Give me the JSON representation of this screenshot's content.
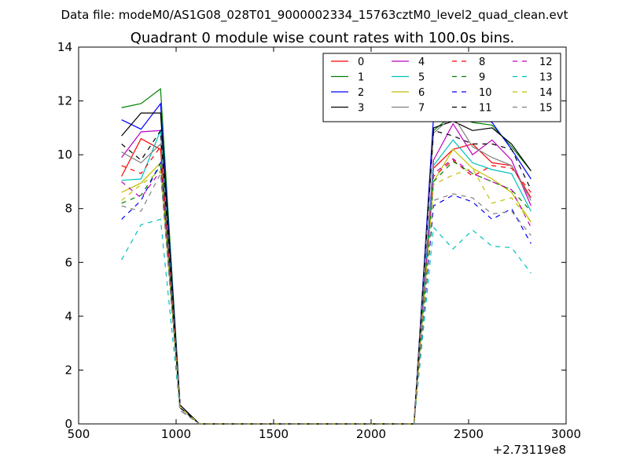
{
  "header_text": "Data file: modeM0/AS1G08_028T01_9000002334_15763cztM0_level2_quad_clean.evt",
  "chart_data": {
    "type": "line",
    "title": "Quadrant 0 module wise count rates with 100.0s bins.",
    "xlabel": "",
    "ylabel": "",
    "x_offset_label": "+2.73119e8",
    "xlim": [
      500,
      3000
    ],
    "ylim": [
      0,
      14
    ],
    "xticks": [
      500,
      1000,
      1500,
      2000,
      2500,
      3000
    ],
    "yticks": [
      0,
      2,
      4,
      6,
      8,
      10,
      12,
      14
    ],
    "grid": false,
    "legend_position": "top-right",
    "legend_columns": 4,
    "x": [
      720,
      820,
      920,
      1020,
      1120,
      1220,
      1320,
      1420,
      1520,
      1620,
      1720,
      1820,
      1920,
      2020,
      2120,
      2220,
      2320,
      2420,
      2520,
      2620,
      2720,
      2820
    ],
    "series": [
      {
        "name": "0",
        "color": "#ff0000",
        "dash": "solid",
        "values": [
          9.2,
          10.6,
          10.2,
          0.7,
          0,
          0,
          0,
          0,
          0,
          0,
          0,
          0,
          0,
          0,
          0,
          0,
          9.5,
          10.2,
          10.4,
          9.7,
          9.6,
          8.4
        ]
      },
      {
        "name": "1",
        "color": "#008000",
        "dash": "solid",
        "values": [
          11.75,
          11.9,
          12.45,
          0.7,
          0,
          0,
          0,
          0,
          0,
          0,
          0,
          0,
          0,
          0,
          0,
          0,
          10.9,
          11.5,
          11.2,
          11.1,
          10.3,
          9.4
        ]
      },
      {
        "name": "2",
        "color": "#0000ff",
        "dash": "solid",
        "values": [
          11.3,
          10.95,
          11.9,
          0.7,
          0,
          0,
          0,
          0,
          0,
          0,
          0,
          0,
          0,
          0,
          0,
          0,
          11.4,
          11.7,
          11.6,
          11.2,
          10.2,
          9.1
        ]
      },
      {
        "name": "3",
        "color": "#000000",
        "dash": "solid",
        "values": [
          10.7,
          11.55,
          11.55,
          0.7,
          0,
          0,
          0,
          0,
          0,
          0,
          0,
          0,
          0,
          0,
          0,
          0,
          11.0,
          11.25,
          10.9,
          11.0,
          10.4,
          9.4
        ]
      },
      {
        "name": "4",
        "color": "#bf00bf",
        "dash": "solid",
        "values": [
          9.9,
          10.85,
          10.9,
          0.6,
          0,
          0,
          0,
          0,
          0,
          0,
          0,
          0,
          0,
          0,
          0,
          0,
          9.8,
          11.15,
          10.0,
          10.55,
          9.8,
          8.1
        ]
      },
      {
        "name": "5",
        "color": "#00bfbf",
        "dash": "solid",
        "values": [
          9.05,
          9.1,
          10.9,
          0.6,
          0,
          0,
          0,
          0,
          0,
          0,
          0,
          0,
          0,
          0,
          0,
          0,
          9.6,
          10.55,
          9.7,
          9.45,
          9.3,
          7.9
        ]
      },
      {
        "name": "6",
        "color": "#bfbf00",
        "dash": "solid",
        "values": [
          8.6,
          8.95,
          9.7,
          0.6,
          0,
          0,
          0,
          0,
          0,
          0,
          0,
          0,
          0,
          0,
          0,
          0,
          9.0,
          10.2,
          9.5,
          9.1,
          8.6,
          7.5
        ]
      },
      {
        "name": "7",
        "color": "#808080",
        "dash": "solid",
        "values": [
          10.1,
          9.7,
          10.4,
          0.6,
          0,
          0,
          0,
          0,
          0,
          0,
          0,
          0,
          0,
          0,
          0,
          0,
          10.8,
          11.45,
          10.3,
          9.9,
          9.6,
          8.3
        ]
      },
      {
        "name": "8",
        "color": "#ff0000",
        "dash": "dashed",
        "values": [
          9.6,
          9.3,
          10.3,
          0.6,
          0,
          0,
          0,
          0,
          0,
          0,
          0,
          0,
          0,
          0,
          0,
          0,
          9.2,
          9.8,
          9.2,
          9.6,
          9.5,
          8.6
        ]
      },
      {
        "name": "9",
        "color": "#008000",
        "dash": "dashed",
        "values": [
          8.2,
          8.5,
          9.6,
          0.6,
          0,
          0,
          0,
          0,
          0,
          0,
          0,
          0,
          0,
          0,
          0,
          0,
          9.0,
          9.75,
          9.3,
          9.0,
          8.7,
          7.9
        ]
      },
      {
        "name": "10",
        "color": "#0000ff",
        "dash": "dashed",
        "values": [
          7.6,
          8.3,
          9.7,
          0.5,
          0,
          0,
          0,
          0,
          0,
          0,
          0,
          0,
          0,
          0,
          0,
          0,
          8.1,
          8.5,
          8.25,
          7.6,
          8.0,
          6.7
        ]
      },
      {
        "name": "11",
        "color": "#000000",
        "dash": "dashed",
        "values": [
          10.4,
          9.8,
          10.9,
          0.6,
          0,
          0,
          0,
          0,
          0,
          0,
          0,
          0,
          0,
          0,
          0,
          0,
          10.9,
          10.7,
          10.4,
          10.4,
          10.2,
          8.7
        ]
      },
      {
        "name": "12",
        "color": "#bf00bf",
        "dash": "dashed",
        "values": [
          9.0,
          8.4,
          9.4,
          0.6,
          0,
          0,
          0,
          0,
          0,
          0,
          0,
          0,
          0,
          0,
          0,
          0,
          9.3,
          9.85,
          9.3,
          9.0,
          8.7,
          7.3
        ]
      },
      {
        "name": "13",
        "color": "#00bfbf",
        "dash": "dashed",
        "values": [
          6.1,
          7.4,
          7.6,
          0.5,
          0,
          0,
          0,
          0,
          0,
          0,
          0,
          0,
          0,
          0,
          0,
          0,
          7.3,
          6.5,
          7.2,
          6.6,
          6.55,
          5.6
        ]
      },
      {
        "name": "14",
        "color": "#bfbf00",
        "dash": "dashed",
        "values": [
          8.3,
          8.9,
          9.4,
          0.6,
          0,
          0,
          0,
          0,
          0,
          0,
          0,
          0,
          0,
          0,
          0,
          0,
          8.9,
          9.25,
          9.5,
          8.2,
          8.4,
          7.5
        ]
      },
      {
        "name": "15",
        "color": "#808080",
        "dash": "dashed",
        "values": [
          8.1,
          7.9,
          9.3,
          0.5,
          0,
          0,
          0,
          0,
          0,
          0,
          0,
          0,
          0,
          0,
          0,
          0,
          8.3,
          8.55,
          8.4,
          7.8,
          7.9,
          7.0
        ]
      }
    ]
  }
}
